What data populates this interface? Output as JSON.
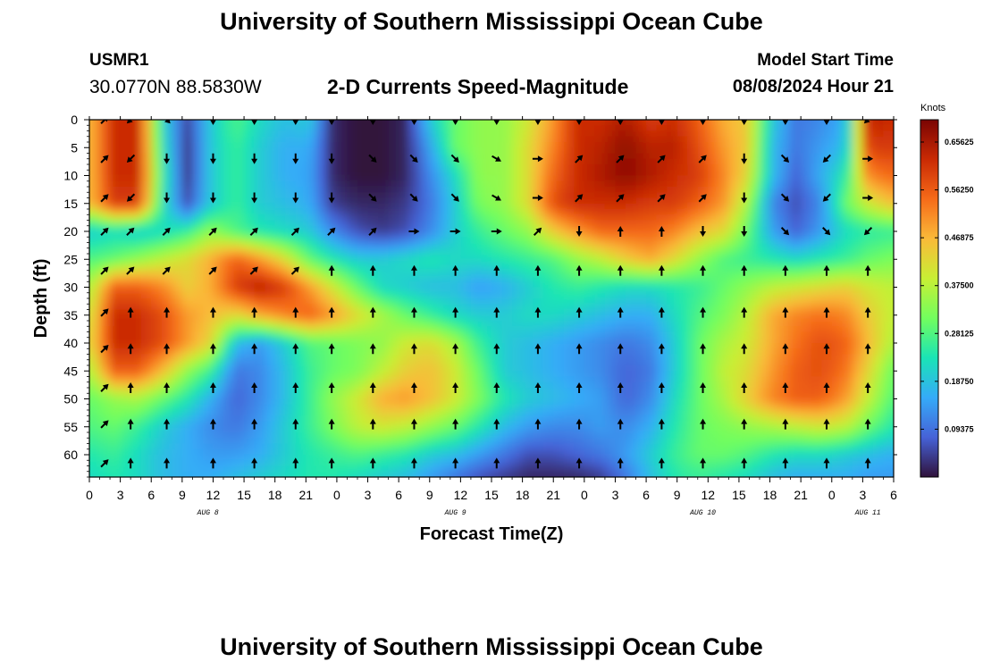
{
  "header": {
    "title": "University of Southern Mississippi Ocean Cube",
    "station_id": "USMR1",
    "station_coords": "30.0770N  88.5830W",
    "subtitle": "2-D Currents Speed-Magnitude",
    "model_start_label": "Model Start Time",
    "model_start_value": "08/08/2024 Hour 21"
  },
  "footer": {
    "title": "University of Southern Mississippi Ocean Cube"
  },
  "chart_data": {
    "type": "heatmap",
    "title": "2-D Currents Speed-Magnitude",
    "xlabel": "Forecast Time(Z)",
    "ylabel": "Depth (ft)",
    "x_hours": [
      0,
      3,
      6,
      9,
      12,
      15,
      18,
      21,
      24,
      27,
      30,
      33,
      36,
      39,
      42,
      45,
      48,
      51,
      54,
      57,
      60,
      63,
      66,
      69,
      72,
      75,
      78
    ],
    "x_tick_labels": [
      "0",
      "3",
      "6",
      "9",
      "12",
      "15",
      "18",
      "21",
      "0",
      "3",
      "6",
      "9",
      "12",
      "15",
      "18",
      "21",
      "0",
      "3",
      "6",
      "9",
      "12",
      "15",
      "18",
      "21",
      "0",
      "3",
      "6"
    ],
    "day_labels": [
      {
        "label": "AUG 8",
        "hour": 11.5
      },
      {
        "label": "AUG 9",
        "hour": 35.5
      },
      {
        "label": "AUG 10",
        "hour": 59.5
      },
      {
        "label": "AUG 11",
        "hour": 75.5
      }
    ],
    "y_ticks": [
      0,
      5,
      10,
      15,
      20,
      25,
      30,
      35,
      40,
      45,
      50,
      55,
      60
    ],
    "xlim": [
      0,
      78
    ],
    "ylim": [
      0,
      64
    ],
    "y_inverted": true,
    "colorbar": {
      "unit": "Knots",
      "min": 0,
      "max": 0.7,
      "tick_values": [
        0.09375,
        0.1875,
        0.28125,
        0.375,
        0.46875,
        0.5625,
        0.65625
      ],
      "tick_labels": [
        "0.09375",
        "0.18750",
        "0.28125",
        "0.37500",
        "0.46875",
        "0.56250",
        "0.65625"
      ],
      "colormap": [
        "#30123b",
        "#4662d7",
        "#35abf8",
        "#1ae4b6",
        "#72fe5e",
        "#c8ef34",
        "#faba39",
        "#f66b19",
        "#ca2a04",
        "#7a0403"
      ]
    },
    "speed_depths": [
      0,
      5,
      10,
      15,
      20,
      25,
      30,
      35,
      40,
      45,
      50,
      55,
      60,
      64
    ],
    "speed_values": [
      [
        0.46,
        0.62,
        0.62,
        0.22,
        0.05,
        0.2,
        0.28,
        0.22,
        0.18,
        0.2,
        0.02,
        0.0,
        0.0,
        0.02,
        0.2,
        0.3,
        0.34,
        0.34,
        0.4,
        0.5,
        0.62,
        0.62,
        0.65,
        0.6,
        0.62,
        0.56,
        0.48,
        0.44,
        0.2,
        0.1,
        0.12,
        0.16,
        0.64,
        0.62
      ],
      [
        0.46,
        0.62,
        0.62,
        0.24,
        0.04,
        0.2,
        0.26,
        0.2,
        0.16,
        0.16,
        0.02,
        0.0,
        0.0,
        0.02,
        0.15,
        0.3,
        0.34,
        0.34,
        0.42,
        0.52,
        0.62,
        0.64,
        0.68,
        0.64,
        0.64,
        0.58,
        0.5,
        0.44,
        0.18,
        0.1,
        0.14,
        0.18,
        0.6,
        0.6
      ],
      [
        0.46,
        0.62,
        0.62,
        0.26,
        0.04,
        0.2,
        0.26,
        0.2,
        0.16,
        0.15,
        0.02,
        0.0,
        0.0,
        0.02,
        0.12,
        0.22,
        0.34,
        0.34,
        0.42,
        0.55,
        0.62,
        0.65,
        0.68,
        0.65,
        0.62,
        0.6,
        0.52,
        0.42,
        0.18,
        0.08,
        0.16,
        0.24,
        0.52,
        0.55
      ],
      [
        0.46,
        0.6,
        0.6,
        0.24,
        0.06,
        0.2,
        0.26,
        0.2,
        0.18,
        0.16,
        0.04,
        0.02,
        0.02,
        0.04,
        0.1,
        0.2,
        0.32,
        0.34,
        0.42,
        0.58,
        0.62,
        0.62,
        0.62,
        0.6,
        0.6,
        0.56,
        0.5,
        0.36,
        0.12,
        0.06,
        0.12,
        0.3,
        0.4,
        0.46
      ],
      [
        0.2,
        0.22,
        0.2,
        0.22,
        0.26,
        0.34,
        0.28,
        0.24,
        0.22,
        0.2,
        0.12,
        0.06,
        0.04,
        0.06,
        0.12,
        0.2,
        0.26,
        0.3,
        0.34,
        0.44,
        0.5,
        0.55,
        0.55,
        0.55,
        0.52,
        0.46,
        0.42,
        0.3,
        0.15,
        0.08,
        0.14,
        0.22,
        0.25,
        0.26
      ],
      [
        0.28,
        0.3,
        0.34,
        0.38,
        0.42,
        0.48,
        0.56,
        0.5,
        0.42,
        0.3,
        0.24,
        0.2,
        0.2,
        0.22,
        0.24,
        0.22,
        0.22,
        0.24,
        0.26,
        0.28,
        0.34,
        0.38,
        0.44,
        0.48,
        0.42,
        0.34,
        0.28,
        0.26,
        0.24,
        0.22,
        0.24,
        0.26,
        0.3,
        0.32
      ],
      [
        0.36,
        0.56,
        0.56,
        0.52,
        0.44,
        0.48,
        0.6,
        0.64,
        0.6,
        0.5,
        0.4,
        0.3,
        0.22,
        0.2,
        0.18,
        0.18,
        0.14,
        0.16,
        0.2,
        0.24,
        0.26,
        0.24,
        0.22,
        0.22,
        0.24,
        0.26,
        0.3,
        0.34,
        0.38,
        0.4,
        0.42,
        0.44,
        0.4,
        0.38
      ],
      [
        0.4,
        0.62,
        0.62,
        0.58,
        0.5,
        0.46,
        0.42,
        0.48,
        0.52,
        0.56,
        0.5,
        0.42,
        0.36,
        0.3,
        0.26,
        0.22,
        0.2,
        0.2,
        0.22,
        0.22,
        0.2,
        0.18,
        0.16,
        0.16,
        0.22,
        0.28,
        0.32,
        0.38,
        0.48,
        0.52,
        0.54,
        0.52,
        0.44,
        0.38
      ],
      [
        0.42,
        0.62,
        0.62,
        0.58,
        0.5,
        0.42,
        0.18,
        0.14,
        0.2,
        0.28,
        0.3,
        0.32,
        0.34,
        0.4,
        0.42,
        0.36,
        0.26,
        0.2,
        0.18,
        0.16,
        0.14,
        0.12,
        0.1,
        0.12,
        0.2,
        0.3,
        0.36,
        0.4,
        0.48,
        0.54,
        0.58,
        0.56,
        0.46,
        0.36
      ],
      [
        0.36,
        0.56,
        0.56,
        0.46,
        0.34,
        0.26,
        0.1,
        0.12,
        0.18,
        0.26,
        0.3,
        0.32,
        0.38,
        0.44,
        0.46,
        0.4,
        0.3,
        0.2,
        0.18,
        0.16,
        0.14,
        0.12,
        0.08,
        0.1,
        0.2,
        0.3,
        0.38,
        0.42,
        0.5,
        0.56,
        0.58,
        0.54,
        0.42,
        0.3
      ],
      [
        0.3,
        0.34,
        0.36,
        0.3,
        0.24,
        0.16,
        0.08,
        0.12,
        0.18,
        0.26,
        0.34,
        0.4,
        0.48,
        0.5,
        0.46,
        0.4,
        0.32,
        0.24,
        0.2,
        0.18,
        0.16,
        0.14,
        0.08,
        0.12,
        0.22,
        0.3,
        0.36,
        0.44,
        0.52,
        0.56,
        0.56,
        0.5,
        0.38,
        0.28
      ],
      [
        0.28,
        0.3,
        0.26,
        0.2,
        0.16,
        0.12,
        0.1,
        0.14,
        0.2,
        0.26,
        0.32,
        0.38,
        0.4,
        0.38,
        0.34,
        0.3,
        0.24,
        0.18,
        0.14,
        0.12,
        0.12,
        0.14,
        0.12,
        0.16,
        0.24,
        0.3,
        0.32,
        0.34,
        0.36,
        0.38,
        0.4,
        0.38,
        0.3,
        0.24
      ],
      [
        0.24,
        0.26,
        0.22,
        0.18,
        0.16,
        0.14,
        0.14,
        0.16,
        0.2,
        0.24,
        0.26,
        0.28,
        0.26,
        0.24,
        0.2,
        0.18,
        0.14,
        0.1,
        0.06,
        0.06,
        0.08,
        0.1,
        0.14,
        0.2,
        0.26,
        0.3,
        0.3,
        0.28,
        0.24,
        0.22,
        0.22,
        0.2,
        0.18,
        0.16
      ],
      [
        0.22,
        0.24,
        0.22,
        0.18,
        0.16,
        0.16,
        0.18,
        0.2,
        0.22,
        0.24,
        0.24,
        0.22,
        0.2,
        0.18,
        0.14,
        0.1,
        0.06,
        0.04,
        0.02,
        0.02,
        0.02,
        0.04,
        0.1,
        0.18,
        0.24,
        0.26,
        0.24,
        0.22,
        0.18,
        0.16,
        0.16,
        0.16,
        0.14,
        0.14
      ]
    ],
    "vector_hours": [
      1.5,
      4,
      7.5,
      12,
      16,
      20,
      23.5,
      27.5,
      31.5,
      35.5,
      39.5,
      43.5,
      47.5,
      51.5,
      55.5,
      59.5,
      63.5,
      67.5,
      71.5,
      75.5
    ],
    "vector_depths": [
      0,
      7,
      14,
      20,
      27,
      34.5,
      41,
      48,
      54.5,
      61.5
    ],
    "vector_directions_deg": [
      [
        45,
        225,
        135,
        180,
        180,
        180,
        180,
        180,
        180,
        180,
        180,
        180,
        180,
        180,
        180,
        180,
        180,
        180,
        180,
        225
      ],
      [
        45,
        225,
        180,
        180,
        180,
        180,
        180,
        135,
        135,
        135,
        120,
        90,
        45,
        45,
        45,
        45,
        180,
        135,
        225,
        90
      ],
      [
        45,
        225,
        180,
        180,
        180,
        180,
        180,
        135,
        135,
        135,
        120,
        90,
        45,
        45,
        45,
        45,
        180,
        135,
        225,
        90
      ],
      [
        45,
        45,
        45,
        45,
        45,
        45,
        45,
        45,
        90,
        90,
        90,
        45,
        180,
        0,
        0,
        180,
        180,
        135,
        135,
        225
      ],
      [
        45,
        45,
        45,
        45,
        45,
        45,
        0,
        0,
        0,
        0,
        0,
        0,
        0,
        0,
        0,
        0,
        0,
        0,
        0,
        0
      ],
      [
        45,
        0,
        0,
        0,
        0,
        0,
        0,
        0,
        0,
        0,
        0,
        0,
        0,
        0,
        0,
        0,
        0,
        0,
        0,
        0
      ],
      [
        45,
        0,
        0,
        0,
        0,
        0,
        0,
        0,
        0,
        0,
        0,
        0,
        0,
        0,
        0,
        0,
        0,
        0,
        0,
        0
      ],
      [
        45,
        0,
        0,
        0,
        0,
        0,
        0,
        0,
        0,
        0,
        0,
        0,
        0,
        0,
        0,
        0,
        0,
        0,
        0,
        0
      ],
      [
        45,
        0,
        0,
        0,
        0,
        0,
        0,
        0,
        0,
        0,
        0,
        0,
        0,
        0,
        0,
        0,
        0,
        0,
        0,
        0
      ],
      [
        45,
        0,
        0,
        0,
        0,
        0,
        0,
        0,
        0,
        0,
        0,
        0,
        0,
        0,
        0,
        0,
        0,
        0,
        0,
        0
      ]
    ]
  }
}
